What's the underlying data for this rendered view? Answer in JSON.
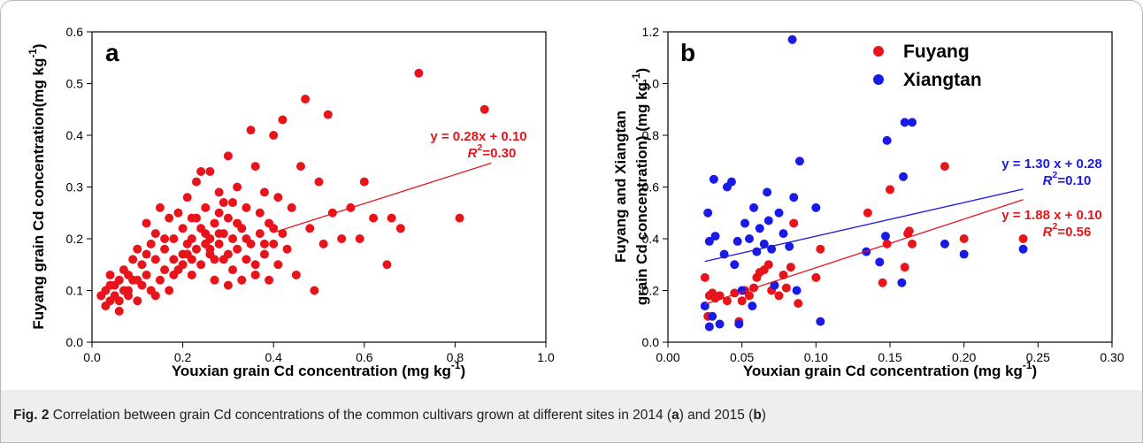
{
  "chart_data": [
    {
      "type": "scatter",
      "panel_label": "a",
      "x_label": [
        "Youxian grain Cd concentration (mg kg",
        {
          "text": "-1",
          "sup": true
        },
        ")"
      ],
      "y_label": [
        [
          "Fuyang grain Cd concentration(mg kg",
          {
            "text": "-1",
            "sup": true
          },
          ")"
        ]
      ],
      "xlim": [
        0,
        1
      ],
      "ylim": [
        0,
        0.6
      ],
      "xticks": [
        {
          "value": 0,
          "label": "0.0"
        },
        0.2,
        0.4,
        0.6,
        0.8,
        {
          "value": 1,
          "label": "1.0"
        }
      ],
      "yticks": [
        {
          "value": 0,
          "label": "0.0"
        },
        0.1,
        0.2,
        0.3,
        0.4,
        0.5,
        0.6
      ],
      "series": [
        {
          "color": "#e8141b",
          "x": [
            0.03,
            0.03,
            0.04,
            0.04,
            0.05,
            0.05,
            0.06,
            0.06,
            0.07,
            0.07,
            0.08,
            0.08,
            0.09,
            0.09,
            0.1,
            0.1,
            0.11,
            0.11,
            0.12,
            0.12,
            0.13,
            0.13,
            0.14,
            0.14,
            0.15,
            0.15,
            0.16,
            0.16,
            0.17,
            0.17,
            0.18,
            0.18,
            0.19,
            0.19,
            0.2,
            0.2,
            0.21,
            0.21,
            0.22,
            0.22,
            0.23,
            0.23,
            0.24,
            0.24,
            0.25,
            0.25,
            0.26,
            0.26,
            0.27,
            0.27,
            0.28,
            0.28,
            0.29,
            0.29,
            0.3,
            0.3,
            0.31,
            0.31,
            0.32,
            0.32,
            0.33,
            0.33,
            0.34,
            0.34,
            0.35,
            0.35,
            0.36,
            0.36,
            0.37,
            0.37,
            0.38,
            0.38,
            0.39,
            0.39,
            0.4,
            0.4,
            0.41,
            0.41,
            0.42,
            0.42,
            0.43,
            0.44,
            0.45,
            0.46,
            0.47,
            0.48,
            0.49,
            0.5,
            0.51,
            0.52,
            0.53,
            0.55,
            0.57,
            0.59,
            0.6,
            0.62,
            0.65,
            0.66,
            0.68,
            0.72,
            0.81,
            0.865,
            0.02,
            0.04,
            0.06,
            0.08,
            0.1,
            0.12,
            0.14,
            0.16,
            0.18,
            0.2,
            0.22,
            0.24,
            0.26,
            0.28,
            0.3,
            0.32,
            0.34,
            0.36,
            0.38,
            0.4,
            0.25,
            0.27,
            0.23,
            0.29,
            0.31,
            0.21,
            0.26,
            0.28,
            0.22,
            0.3
          ],
          "values": [
            0.1,
            0.07,
            0.13,
            0.08,
            0.09,
            0.11,
            0.06,
            0.12,
            0.1,
            0.14,
            0.09,
            0.13,
            0.12,
            0.16,
            0.08,
            0.18,
            0.15,
            0.11,
            0.23,
            0.13,
            0.19,
            0.1,
            0.16,
            0.21,
            0.26,
            0.12,
            0.18,
            0.14,
            0.24,
            0.1,
            0.2,
            0.16,
            0.14,
            0.25,
            0.22,
            0.17,
            0.19,
            0.28,
            0.24,
            0.13,
            0.31,
            0.18,
            0.15,
            0.33,
            0.21,
            0.26,
            0.33,
            0.17,
            0.23,
            0.12,
            0.29,
            0.19,
            0.16,
            0.27,
            0.24,
            0.36,
            0.2,
            0.14,
            0.18,
            0.3,
            0.22,
            0.12,
            0.26,
            0.16,
            0.41,
            0.19,
            0.34,
            0.13,
            0.21,
            0.25,
            0.17,
            0.29,
            0.23,
            0.12,
            0.4,
            0.19,
            0.28,
            0.15,
            0.43,
            0.21,
            0.18,
            0.26,
            0.13,
            0.34,
            0.47,
            0.22,
            0.1,
            0.31,
            0.19,
            0.44,
            0.25,
            0.2,
            0.26,
            0.2,
            0.31,
            0.24,
            0.15,
            0.24,
            0.22,
            0.52,
            0.24,
            0.45,
            0.09,
            0.11,
            0.08,
            0.1,
            0.12,
            0.17,
            0.09,
            0.2,
            0.13,
            0.15,
            0.2,
            0.22,
            0.18,
            0.21,
            0.17,
            0.23,
            0.2,
            0.15,
            0.19,
            0.22,
            0.19,
            0.16,
            0.24,
            0.21,
            0.27,
            0.17,
            0.2,
            0.25,
            0.16,
            0.11
          ]
        }
      ],
      "fits": [
        {
          "color": "#e8141b",
          "equation": "y = 0.28x + 0.10",
          "r2": [
            "R",
            {
              "text": "2",
              "sup": true
            },
            "=0.30"
          ],
          "slope": 0.28,
          "intercept": 0.1,
          "x": [
            0.4,
            0.88
          ]
        }
      ]
    },
    {
      "type": "scatter",
      "panel_label": "b",
      "x_label": [
        "Youxian grain Cd concentration (mg kg",
        {
          "text": "-1",
          "sup": true
        },
        ")"
      ],
      "y_label": [
        [
          "Fuyang and Xiangtan"
        ],
        [
          "grain Cd concentration) (mg kg",
          {
            "text": "-1",
            "sup": true
          },
          ")"
        ]
      ],
      "xlim": [
        0,
        0.3
      ],
      "ylim": [
        0,
        1.2
      ],
      "xticks": [
        {
          "value": 0,
          "label": "0.00"
        },
        {
          "value": 0.05,
          "label": "0.05"
        },
        {
          "value": 0.1,
          "label": "0.10"
        },
        {
          "value": 0.15,
          "label": "0.15"
        },
        {
          "value": 0.2,
          "label": "0.20"
        },
        {
          "value": 0.25,
          "label": "0.25"
        },
        {
          "value": 0.3,
          "label": "0.30"
        }
      ],
      "yticks": [
        {
          "value": 0,
          "label": "0.0"
        },
        0.2,
        0.4,
        0.6,
        0.8,
        {
          "value": 1,
          "label": "1.0"
        },
        1.2
      ],
      "series": [
        {
          "name": "Fuyang",
          "color": "#e8141b",
          "x": [
            0.025,
            0.027,
            0.028,
            0.03,
            0.032,
            0.035,
            0.04,
            0.045,
            0.048,
            0.05,
            0.052,
            0.055,
            0.058,
            0.06,
            0.062,
            0.065,
            0.068,
            0.07,
            0.072,
            0.075,
            0.078,
            0.08,
            0.083,
            0.085,
            0.088,
            0.1,
            0.103,
            0.135,
            0.145,
            0.148,
            0.15,
            0.16,
            0.162,
            0.163,
            0.165,
            0.187,
            0.2,
            0.24
          ],
          "values": [
            0.25,
            0.1,
            0.18,
            0.19,
            0.17,
            0.18,
            0.16,
            0.19,
            0.08,
            0.16,
            0.2,
            0.18,
            0.21,
            0.25,
            0.27,
            0.28,
            0.3,
            0.2,
            0.22,
            0.18,
            0.26,
            0.21,
            0.29,
            0.46,
            0.15,
            0.25,
            0.36,
            0.5,
            0.23,
            0.38,
            0.59,
            0.29,
            0.42,
            0.43,
            0.38,
            0.68,
            0.4,
            0.4
          ]
        },
        {
          "name": "Xiangtan",
          "color": "#1a1ae6",
          "x": [
            0.025,
            0.027,
            0.028,
            0.028,
            0.03,
            0.031,
            0.032,
            0.035,
            0.038,
            0.04,
            0.043,
            0.045,
            0.047,
            0.048,
            0.05,
            0.052,
            0.055,
            0.057,
            0.058,
            0.06,
            0.062,
            0.065,
            0.067,
            0.068,
            0.07,
            0.072,
            0.075,
            0.078,
            0.082,
            0.084,
            0.085,
            0.087,
            0.089,
            0.1,
            0.103,
            0.134,
            0.143,
            0.147,
            0.148,
            0.158,
            0.159,
            0.16,
            0.165,
            0.187,
            0.2,
            0.24
          ],
          "values": [
            0.14,
            0.5,
            0.39,
            0.06,
            0.1,
            0.63,
            0.41,
            0.07,
            0.34,
            0.6,
            0.62,
            0.3,
            0.39,
            0.07,
            0.2,
            0.46,
            0.4,
            0.14,
            0.52,
            0.35,
            0.44,
            0.38,
            0.58,
            0.47,
            0.36,
            0.22,
            0.5,
            0.42,
            0.37,
            1.17,
            0.56,
            0.2,
            0.7,
            0.52,
            0.08,
            0.35,
            0.31,
            0.41,
            0.78,
            0.23,
            0.64,
            0.85,
            0.85,
            0.38,
            0.34,
            0.36
          ]
        }
      ],
      "fits": [
        {
          "color": "#1a1ae6",
          "equation": "y = 1.30 x + 0.28",
          "r2": [
            "R",
            {
              "text": "2",
              "sup": true
            },
            "=0.10"
          ],
          "slope": 1.3,
          "intercept": 0.28,
          "x": [
            0.025,
            0.24
          ]
        },
        {
          "color": "#e8141b",
          "equation": "y = 1.88 x + 0.10",
          "r2": [
            "R",
            {
              "text": "2",
              "sup": true
            },
            "=0.56"
          ],
          "slope": 1.88,
          "intercept": 0.1,
          "x": [
            0.025,
            0.24
          ]
        }
      ]
    }
  ],
  "caption": [
    "Fig. 2",
    " Correlation between grain Cd concentrations of the common cultivars grown at different sites in 2014 (",
    "a",
    ") and 2015 (",
    "b",
    ")"
  ]
}
